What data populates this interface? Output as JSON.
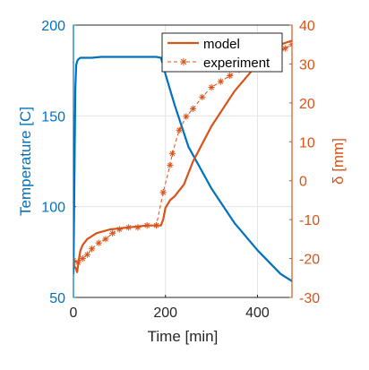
{
  "chart_data": {
    "type": "line",
    "xlabel": "Time [min]",
    "ylabel_left": "Temperature [C]",
    "ylabel_right": "δ [mm]",
    "xlim": [
      0,
      475
    ],
    "ylim_left": [
      50,
      200
    ],
    "ylim_right": [
      -30,
      40
    ],
    "x_ticks": [
      0,
      200,
      400
    ],
    "y_ticks_left": [
      50,
      100,
      150,
      200
    ],
    "y_ticks_right": [
      -30,
      -20,
      -10,
      0,
      10,
      20,
      30,
      40
    ],
    "grid": true,
    "legend_position": "top-right",
    "colors": {
      "temperature": "#0072BD",
      "deflection": "#D95319",
      "right_axis": "#D95319",
      "left_axis": "#0072BD",
      "x_axis": "#262626"
    },
    "series": [
      {
        "axis": "left",
        "x": [
          0,
          2,
          4,
          6,
          8,
          10,
          15,
          20,
          40,
          60,
          100,
          150,
          180,
          190,
          195,
          200,
          220,
          250,
          300,
          350,
          400,
          450,
          475
        ],
        "values": [
          63,
          110,
          165,
          178,
          180,
          181,
          182,
          182,
          182,
          182.5,
          182.5,
          182.5,
          182.5,
          182,
          178,
          173,
          156,
          133,
          110,
          91,
          76,
          63,
          59
        ]
      },
      {
        "name": "model",
        "axis": "right",
        "x": [
          0,
          2,
          5,
          8,
          12,
          15,
          20,
          30,
          50,
          80,
          120,
          160,
          190,
          195,
          200,
          210,
          220,
          230,
          240,
          260,
          300,
          350,
          400,
          450,
          475
        ],
        "values": [
          -20,
          -22,
          -22.5,
          -23.5,
          -20,
          -18,
          -16.5,
          -15,
          -13.5,
          -12.5,
          -12,
          -11.5,
          -11.5,
          -10,
          -7,
          -5,
          -4,
          -2.5,
          -1,
          5,
          14,
          23,
          30,
          35,
          36
        ]
      },
      {
        "name": "experiment",
        "axis": "right",
        "x": [
          0,
          10,
          20,
          30,
          40,
          55,
          70,
          85,
          100,
          120,
          140,
          160,
          180,
          195,
          210,
          215,
          230,
          245,
          260,
          280,
          300,
          320,
          340,
          360,
          380,
          400,
          420,
          440,
          460,
          475
        ],
        "values": [
          -20.5,
          -21,
          -20,
          -19,
          -17.5,
          -16,
          -15,
          -13.5,
          -12.5,
          -12,
          -12,
          -11.5,
          -11.5,
          -3,
          4,
          7,
          13,
          16.5,
          18.5,
          21.5,
          24,
          25.5,
          27,
          28.5,
          29.5,
          31,
          32,
          33,
          34,
          35
        ]
      }
    ]
  }
}
